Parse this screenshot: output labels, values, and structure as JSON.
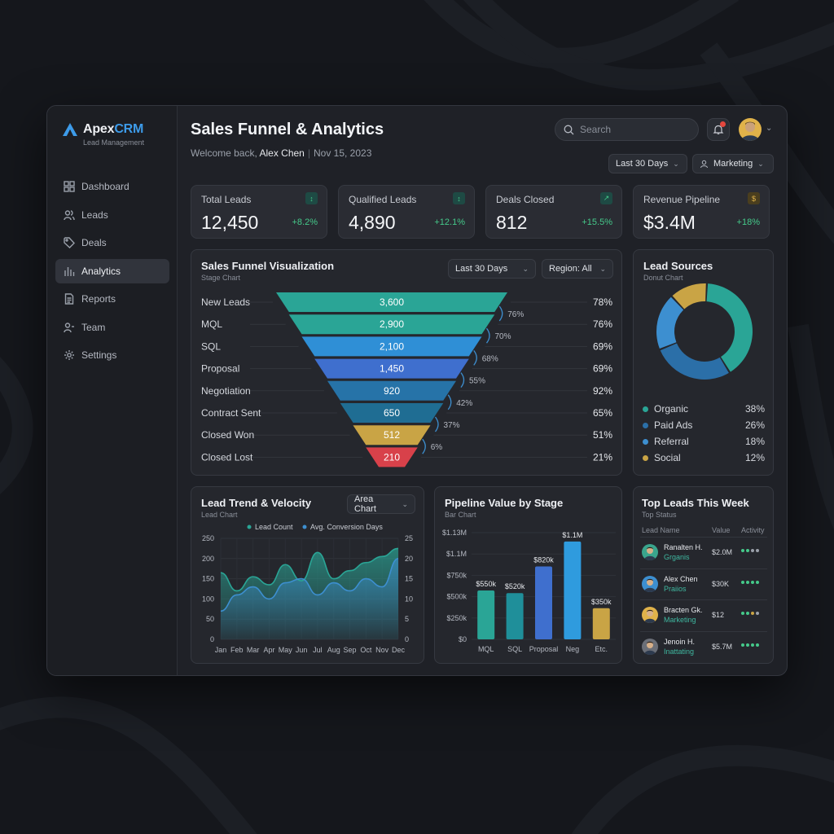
{
  "app": {
    "brand_prefix": "Apex",
    "brand_suffix": "CRM",
    "brand_sub": "Lead Management"
  },
  "sidebar": {
    "items": [
      {
        "label": "Dashboard",
        "icon": "grid-icon"
      },
      {
        "label": "Leads",
        "icon": "users-icon"
      },
      {
        "label": "Deals",
        "icon": "tag-icon"
      },
      {
        "label": "Analytics",
        "icon": "bar-chart-icon",
        "active": true
      },
      {
        "label": "Reports",
        "icon": "document-icon"
      },
      {
        "label": "Team",
        "icon": "team-icon"
      },
      {
        "label": "Settings",
        "icon": "gear-icon"
      }
    ]
  },
  "header": {
    "title": "Sales Funnel & Analytics",
    "welcome_prefix": "Welcome back,",
    "user": "Alex Chen",
    "date": "Nov 15, 2023",
    "search_placeholder": "Search",
    "range_filter": "Last 30 Days",
    "team_filter": "Marketing"
  },
  "kpis": [
    {
      "label": "Total Leads",
      "value": "12,450",
      "delta": "+8.2%",
      "icon": "trend-icon"
    },
    {
      "label": "Qualified Leads",
      "value": "4,890",
      "delta": "+12.1%",
      "icon": "trend-icon"
    },
    {
      "label": "Deals Closed",
      "value": "812",
      "delta": "+15.5%",
      "icon": "trend-up-icon"
    },
    {
      "label": "Revenue Pipeline",
      "value": "$3.4M",
      "delta": "+18%",
      "icon": "dollar-icon"
    }
  ],
  "funnel": {
    "title": "Sales Funnel Visualization",
    "subtitle": "Stage Chart",
    "range": "Last 30 Days",
    "region": "Region: All",
    "colors": {
      "teal": "#2aa596",
      "blue": "#2f8fd6",
      "indigo": "#3f6fce",
      "gold": "#c9a445",
      "red": "#d8414a"
    }
  },
  "chart_data": [
    {
      "type": "bar",
      "title": "Sales Funnel Visualization",
      "categories": [
        "New Leads",
        "MQL",
        "SQL",
        "Proposal",
        "Negotiation",
        "Contract Sent",
        "Closed Won",
        "Closed Lost"
      ],
      "values": [
        3600,
        2900,
        2100,
        1450,
        920,
        650,
        512,
        210
      ],
      "value_labels": [
        "3,600",
        "2,900",
        "2,100",
        "1,450",
        "920",
        "650",
        "512",
        "210"
      ],
      "right_pct": [
        "78%",
        "76%",
        "69%",
        "69%",
        "92%",
        "65%",
        "51%",
        "21%"
      ],
      "transition_pct": [
        "76%",
        "70%",
        "68%",
        "55%",
        "42%",
        "37%",
        "6%"
      ]
    },
    {
      "type": "pie",
      "title": "Lead Sources",
      "subtitle": "Donut Chart",
      "series": [
        {
          "name": "Organic",
          "value": 38,
          "label": "38%",
          "color": "#2aa596"
        },
        {
          "name": "Paid Ads",
          "value": 26,
          "label": "26%",
          "color": "#2b6fa8"
        },
        {
          "name": "Referral",
          "value": 18,
          "label": "18%",
          "color": "#3d8fd0"
        },
        {
          "name": "Social",
          "value": 12,
          "label": "12%",
          "color": "#c9a445"
        }
      ]
    },
    {
      "type": "area",
      "title": "Lead Trend & Velocity",
      "subtitle": "Lead Chart",
      "dropdown": "Area Chart",
      "categories": [
        "Jan",
        "Feb",
        "Mar",
        "Apr",
        "May",
        "Jun",
        "Jul",
        "Aug",
        "Sep",
        "Oct",
        "Nov",
        "Dec"
      ],
      "y_ticks": [
        "250",
        "200",
        "150",
        "100",
        "50",
        "0"
      ],
      "y2_ticks": [
        "25",
        "20",
        "15",
        "10",
        "5",
        "0"
      ],
      "ylim": [
        0,
        250
      ],
      "y2lim": [
        0,
        25
      ],
      "series": [
        {
          "name": "Lead Count",
          "color": "#2aa596",
          "values": [
            165,
            120,
            155,
            135,
            185,
            145,
            215,
            150,
            170,
            190,
            205,
            225
          ]
        },
        {
          "name": "Avg. Conversion Days",
          "color": "#3d8fd0",
          "values": [
            7,
            11,
            13,
            10,
            14,
            15,
            11,
            14,
            12,
            15,
            13,
            20
          ]
        }
      ]
    },
    {
      "type": "bar",
      "title": "Pipeline Value by Stage",
      "subtitle": "Bar Chart",
      "categories": [
        "MQL",
        "SQL",
        "Proposal",
        "Neg",
        "Etc."
      ],
      "values": [
        550,
        520,
        820,
        1100,
        350
      ],
      "value_labels": [
        "$550k",
        "$520k",
        "$820k",
        "$1.1M",
        "$350k"
      ],
      "colors": [
        "#2aa596",
        "#1f8f9a",
        "#3f6fce",
        "#2f9bde",
        "#c9a445"
      ],
      "y_ticks": [
        "$1.13M",
        "$1.1M",
        "$750k",
        "$500k",
        "$250k",
        "$0"
      ]
    }
  ],
  "top_leads": {
    "title": "Top Leads This Week",
    "subtitle": "Top Status",
    "headers": [
      "Lead Name",
      "Value",
      "Activity"
    ],
    "rows": [
      {
        "name": "Ranalten H.",
        "dept": "Grganis",
        "value": "$2.0M",
        "avatar": "#3aa58d",
        "activity": [
          "#45c98a",
          "#45c98a",
          "#9aa0aa",
          "#9aa0aa"
        ]
      },
      {
        "name": "Alex Chen",
        "dept": "Praiios",
        "value": "$30K",
        "avatar": "#3d8fd0",
        "activity": [
          "#45c98a",
          "#45c98a",
          "#45c98a",
          "#45c98a"
        ]
      },
      {
        "name": "Bracten Gk.",
        "dept": "Marketing",
        "value": "$12",
        "avatar": "#e0b24a",
        "activity": [
          "#45c98a",
          "#45c98a",
          "#c9a445",
          "#9aa0aa"
        ]
      },
      {
        "name": "Jenoin H.",
        "dept": "Inattating",
        "value": "$5.7M",
        "avatar": "#6b6f78",
        "activity": [
          "#45c98a",
          "#45c98a",
          "#45c98a",
          "#45c98a"
        ]
      }
    ]
  }
}
